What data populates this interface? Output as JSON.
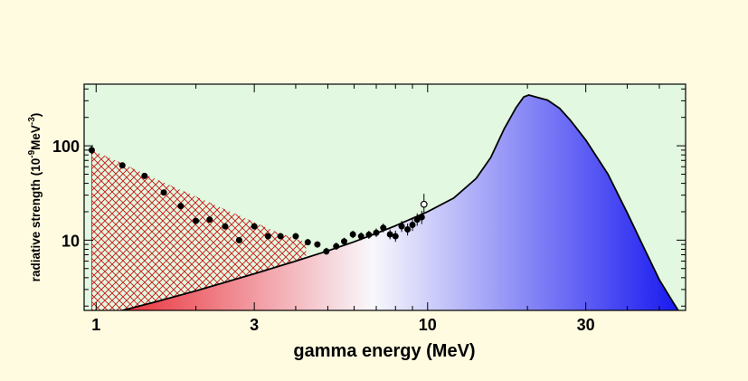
{
  "chart_data": {
    "type": "area",
    "xlabel": "gamma energy (MeV)",
    "ylabel": "radiative strength (10",
    "ylabel_sup1": "-9",
    "ylabel_unit": "MeV",
    "ylabel_sup2": "-3",
    "ylabel_close": ")",
    "x_scale": "log",
    "y_scale": "log",
    "xlim": [
      0.92,
      60
    ],
    "ylim": [
      1.8,
      450
    ],
    "x_ticks": [
      {
        "value": 1,
        "label": "1"
      },
      {
        "value": 3,
        "label": "3"
      },
      {
        "value": 10,
        "label": "10"
      },
      {
        "value": 30,
        "label": "30"
      }
    ],
    "y_ticks": [
      {
        "value": 10,
        "label": "10"
      },
      {
        "value": 100,
        "label": "100"
      }
    ],
    "colors": {
      "page_background": "#fefbe0",
      "plot_background": "#e2f8e0",
      "low_energy_color": "#e8141e",
      "mid_color": "#f8f8fc",
      "high_energy_color": "#1414f0",
      "hatch_color": "#c81414",
      "curve_color": "#000000"
    },
    "series": [
      {
        "kind": "hatched-region",
        "points": [
          [
            0.97,
            90
          ],
          [
            1.2,
            65
          ],
          [
            1.5,
            45
          ],
          [
            2.0,
            29
          ],
          [
            2.5,
            20.5
          ],
          [
            3.0,
            15.5
          ],
          [
            3.5,
            12.2
          ],
          [
            4.0,
            10.3
          ],
          [
            4.3,
            9.5
          ]
        ]
      },
      {
        "kind": "gradient-curve",
        "points": [
          [
            1.2,
            1.8
          ],
          [
            1.5,
            2.2
          ],
          [
            2.0,
            2.9
          ],
          [
            3.0,
            4.4
          ],
          [
            4.0,
            6.0
          ],
          [
            5.0,
            7.7
          ],
          [
            6.0,
            9.6
          ],
          [
            7.0,
            11.8
          ],
          [
            8.0,
            14.2
          ],
          [
            10,
            20
          ],
          [
            12,
            28
          ],
          [
            14,
            45
          ],
          [
            15.5,
            75
          ],
          [
            17,
            150
          ],
          [
            18.5,
            255
          ],
          [
            19.5,
            330
          ],
          [
            20.2,
            345
          ],
          [
            21.5,
            325
          ],
          [
            23,
            305
          ],
          [
            25,
            250
          ],
          [
            27,
            185
          ],
          [
            30,
            115
          ],
          [
            35,
            50
          ],
          [
            40,
            19.5
          ],
          [
            45,
            8.2
          ],
          [
            50,
            3.8
          ],
          [
            55,
            2.2
          ],
          [
            57,
            1.8
          ]
        ]
      },
      {
        "kind": "measured-points",
        "points": [
          {
            "x": 0.97,
            "y": 90,
            "lo": 82,
            "hi": 99
          },
          {
            "x": 1.2,
            "y": 62
          },
          {
            "x": 1.4,
            "y": 48
          },
          {
            "x": 1.6,
            "y": 32
          },
          {
            "x": 1.8,
            "y": 23
          },
          {
            "x": 2.0,
            "y": 16
          },
          {
            "x": 2.2,
            "y": 16.5
          },
          {
            "x": 2.45,
            "y": 14
          },
          {
            "x": 2.7,
            "y": 10
          },
          {
            "x": 3.0,
            "y": 14
          },
          {
            "x": 3.3,
            "y": 11
          },
          {
            "x": 3.6,
            "y": 11
          },
          {
            "x": 4.0,
            "y": 11
          },
          {
            "x": 4.35,
            "y": 9.5
          },
          {
            "x": 4.65,
            "y": 9
          },
          {
            "x": 4.95,
            "y": 7.6,
            "lo": 7.0,
            "hi": 8.3
          },
          {
            "x": 5.3,
            "y": 8.6,
            "lo": 7.9,
            "hi": 9.4
          },
          {
            "x": 5.6,
            "y": 9.7,
            "lo": 8.9,
            "hi": 10.6
          },
          {
            "x": 5.95,
            "y": 11.5,
            "lo": 10.5,
            "hi": 12.6
          },
          {
            "x": 6.3,
            "y": 11,
            "lo": 10,
            "hi": 12.1
          },
          {
            "x": 6.65,
            "y": 11.4,
            "lo": 10.3,
            "hi": 12.6
          },
          {
            "x": 7.0,
            "y": 12,
            "lo": 10.8,
            "hi": 13.3
          },
          {
            "x": 7.35,
            "y": 13.5,
            "lo": 12.1,
            "hi": 15
          },
          {
            "x": 7.7,
            "y": 11.5,
            "lo": 10.2,
            "hi": 13
          },
          {
            "x": 8.0,
            "y": 11,
            "lo": 9.6,
            "hi": 12.6
          },
          {
            "x": 8.35,
            "y": 14,
            "lo": 12.2,
            "hi": 16
          },
          {
            "x": 8.7,
            "y": 13,
            "lo": 11.2,
            "hi": 15
          },
          {
            "x": 9.0,
            "y": 14.5,
            "lo": 12.5,
            "hi": 16.8
          },
          {
            "x": 9.3,
            "y": 16.5,
            "lo": 14.2,
            "hi": 19.2
          },
          {
            "x": 9.6,
            "y": 17.5,
            "lo": 14.8,
            "hi": 20.5
          },
          {
            "x": 9.75,
            "y": 24,
            "lo": 19.5,
            "hi": 31,
            "open": true
          }
        ]
      }
    ],
    "grid": false,
    "legend": "none"
  }
}
